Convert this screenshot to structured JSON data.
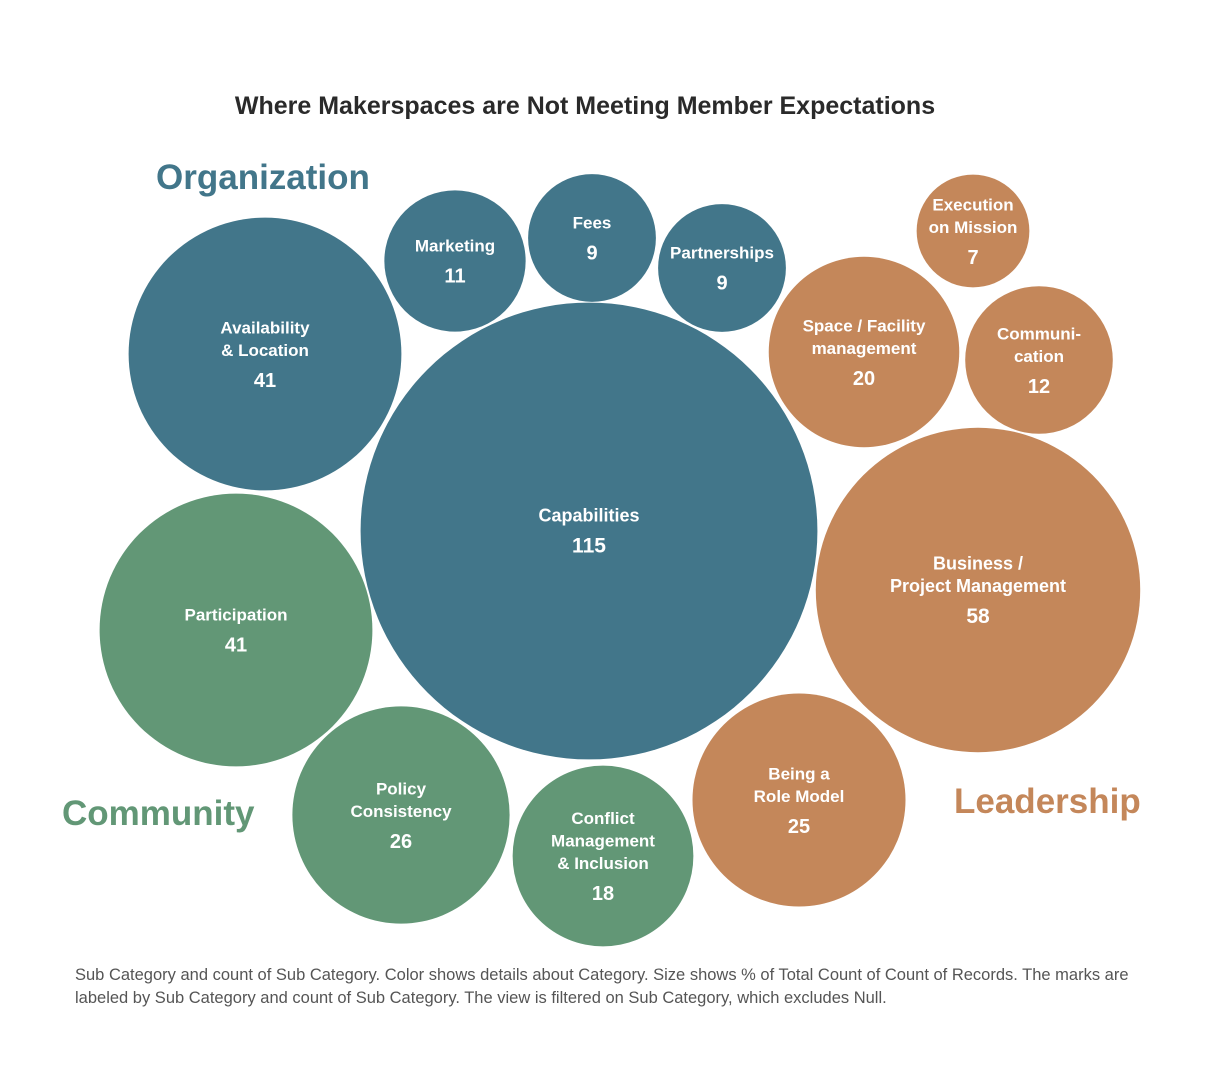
{
  "chart_data": {
    "type": "bubble",
    "title": "Where Makerspaces are Not Meeting Member Expectations",
    "categories": [
      {
        "name": "Organization",
        "color": "#42768a"
      },
      {
        "name": "Community",
        "color": "#629776"
      },
      {
        "name": "Leadership",
        "color": "#c4875a"
      }
    ],
    "bubbles": [
      {
        "label": [
          "Capabilities"
        ],
        "value": 115,
        "category": "Organization"
      },
      {
        "label": [
          "Availability",
          "& Location"
        ],
        "value": 41,
        "category": "Organization"
      },
      {
        "label": [
          "Marketing"
        ],
        "value": 11,
        "category": "Organization"
      },
      {
        "label": [
          "Fees"
        ],
        "value": 9,
        "category": "Organization"
      },
      {
        "label": [
          "Partnerships"
        ],
        "value": 9,
        "category": "Organization"
      },
      {
        "label": [
          "Participation"
        ],
        "value": 41,
        "category": "Community"
      },
      {
        "label": [
          "Policy",
          "Consistency"
        ],
        "value": 26,
        "category": "Community"
      },
      {
        "label": [
          "Conflict",
          "Management",
          "& Inclusion"
        ],
        "value": 18,
        "category": "Community"
      },
      {
        "label": [
          "Business /",
          "Project Management"
        ],
        "value": 58,
        "category": "Leadership"
      },
      {
        "label": [
          "Being a",
          "Role Model"
        ],
        "value": 25,
        "category": "Leadership"
      },
      {
        "label": [
          "Space / Facility",
          "management"
        ],
        "value": 20,
        "category": "Leadership"
      },
      {
        "label": [
          "Communi-",
          "cation"
        ],
        "value": 12,
        "category": "Leadership"
      },
      {
        "label": [
          "Execution",
          "on Mission"
        ],
        "value": 7,
        "category": "Leadership"
      }
    ],
    "caption": "Sub Category and count of Sub Category.  Color shows details about Category.  Size shows % of Total Count of Count of Records.  The marks are labeled by Sub Category and count of Sub Category. The view is filtered on Sub Category, which excludes Null."
  }
}
